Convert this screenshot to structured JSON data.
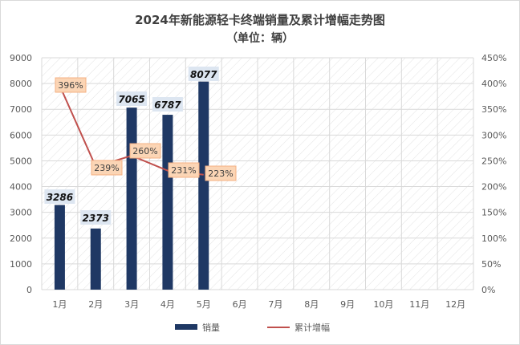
{
  "title": "2024年新能源轻卡终端销量及累计增幅走势图",
  "subtitle": "（单位：辆）",
  "colors": {
    "bar": "#1f3864",
    "line": "#c0504d",
    "bar_label_bg": "#dde6f1",
    "pct_label_bg": "#fbd5b5",
    "pct_label_border": "#f4b183",
    "grid": "#d9d9d9"
  },
  "chart_data": {
    "type": "bar",
    "categories": [
      "1月",
      "2月",
      "3月",
      "4月",
      "5月",
      "6月",
      "7月",
      "8月",
      "9月",
      "10月",
      "11月",
      "12月"
    ],
    "series": [
      {
        "name": "销量",
        "type": "bar",
        "axis": "left",
        "values": [
          3286,
          2373,
          7065,
          6787,
          8077,
          null,
          null,
          null,
          null,
          null,
          null,
          null
        ]
      },
      {
        "name": "累计增幅",
        "type": "line",
        "axis": "right",
        "values": [
          396,
          239,
          260,
          231,
          223,
          null,
          null,
          null,
          null,
          null,
          null,
          null
        ]
      }
    ],
    "bar_labels": [
      "3286",
      "2373",
      "7065",
      "6787",
      "8077"
    ],
    "line_labels": [
      "396%",
      "239%",
      "260%",
      "231%",
      "223%"
    ],
    "y_left": {
      "min": 0,
      "max": 9000,
      "step": 1000,
      "tick_labels": [
        "0",
        "1000",
        "2000",
        "3000",
        "4000",
        "5000",
        "6000",
        "7000",
        "8000",
        "9000"
      ]
    },
    "y_right": {
      "min": 0,
      "max": 450,
      "step": 50,
      "tick_labels": [
        "0%",
        "50%",
        "100%",
        "150%",
        "200%",
        "250%",
        "300%",
        "350%",
        "400%",
        "450%"
      ]
    },
    "grid": true,
    "legend": {
      "position": "bottom",
      "items": [
        "销量",
        "累计增幅"
      ]
    }
  }
}
